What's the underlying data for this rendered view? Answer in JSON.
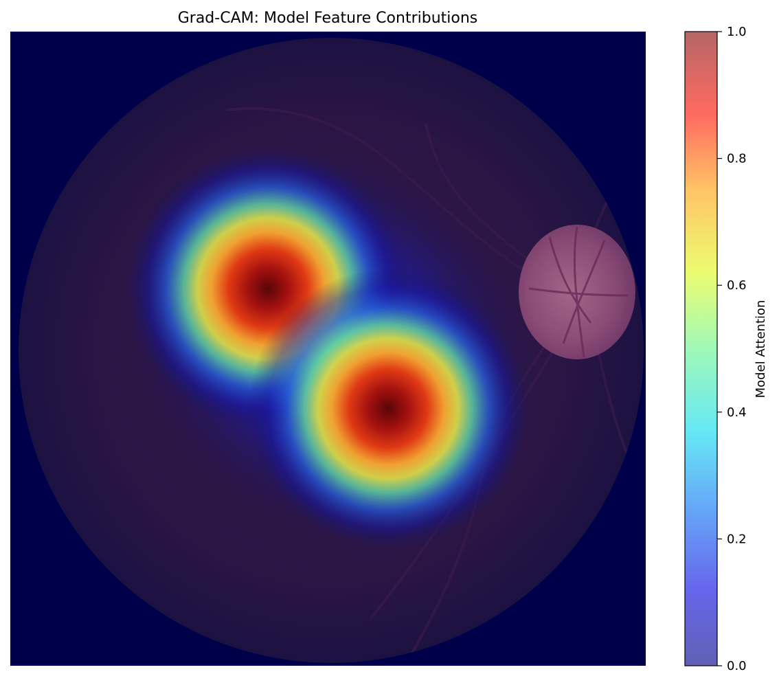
{
  "chart_data": {
    "type": "heatmap",
    "title": "Grad-CAM: Model Feature Contributions",
    "xlabel": "",
    "ylabel": "",
    "axes_visible": false,
    "overlay": "retinal fundus photograph with heatmap overlay",
    "hotspots": [
      {
        "name": "upper-left focus",
        "peak": 1.0
      },
      {
        "name": "lower-right focus",
        "peak": 0.97
      }
    ],
    "colorbar": {
      "label": "Model Attention",
      "colormap": "jet",
      "alpha": 0.6,
      "range": [
        0.0,
        1.0
      ],
      "ticks": [
        "0.0",
        "0.2",
        "0.4",
        "0.6",
        "0.8",
        "1.0"
      ],
      "tick_values": [
        0.0,
        0.2,
        0.4,
        0.6,
        0.8,
        1.0
      ]
    }
  },
  "colors": {
    "background_navy": "#00004a",
    "fundus_dark": "#2a1442",
    "optic_disc": "#a0587a"
  }
}
